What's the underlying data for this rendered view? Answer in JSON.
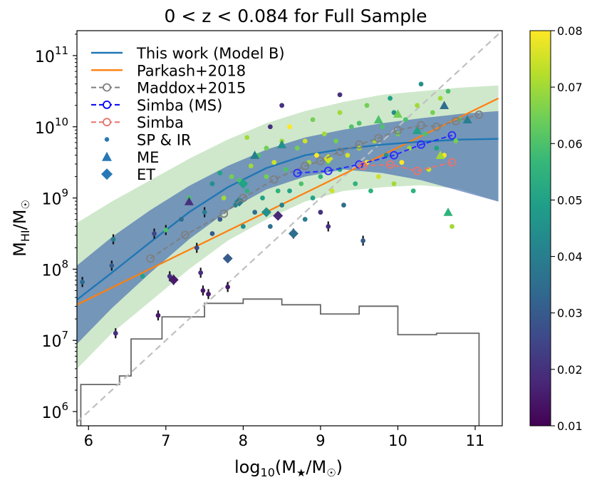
{
  "chart_data": {
    "type": "scatter",
    "title": "0 < z < 0.084 for Full Sample",
    "xlabel": {
      "base": "log",
      "sub": "10",
      "rest": "(M",
      "star": "★",
      "tail": "/M",
      "sun": "☉",
      "close": ")"
    },
    "ylabel": {
      "main": "M",
      "sub": "HI",
      "rest": "/M",
      "sun": "☉"
    },
    "xlim": [
      5.85,
      11.35
    ],
    "ylim_log10": [
      5.8,
      11.35
    ],
    "x_ticks": [
      "6",
      "7",
      "8",
      "9",
      "10",
      "11"
    ],
    "y_ticks": [
      {
        "base": "10",
        "exp": "6",
        "v": 6
      },
      {
        "base": "10",
        "exp": "7",
        "v": 7
      },
      {
        "base": "10",
        "exp": "8",
        "v": 8
      },
      {
        "base": "10",
        "exp": "9",
        "v": 9
      },
      {
        "base": "10",
        "exp": "10",
        "v": 10
      },
      {
        "base": "10",
        "exp": "11",
        "v": 11
      }
    ],
    "colorbar": {
      "min": 0.01,
      "max": 0.08,
      "ticks": [
        "0.01",
        "0.02",
        "0.03",
        "0.04",
        "0.05",
        "0.06",
        "0.07",
        "0.08"
      ],
      "colormap": [
        "#440154",
        "#482878",
        "#3e4989",
        "#31688e",
        "#26828e",
        "#1f9e89",
        "#35b779",
        "#6ece58",
        "#b5de2b",
        "#fde725"
      ]
    },
    "legend": {
      "position": "top-left",
      "entries": [
        {
          "label": "This work (Model B)",
          "kind": "line",
          "color": "#1f77b4"
        },
        {
          "label": "Parkash+2018",
          "kind": "line",
          "color": "#ff7f0e"
        },
        {
          "label": "Maddox+2015",
          "kind": "dashed-open",
          "color": "#7f7f7f"
        },
        {
          "label": "Simba (MS)",
          "kind": "dashed-open",
          "color": "#0000ff"
        },
        {
          "label": "Simba",
          "kind": "dashed-open",
          "color": "#e8736e"
        },
        {
          "label": "SP & IR",
          "kind": "dot",
          "color": "#2878b5"
        },
        {
          "label": "ME",
          "kind": "triangle",
          "color": "#2878b5"
        },
        {
          "label": "ET",
          "kind": "diamond",
          "color": "#2878b5"
        }
      ]
    },
    "model_b": {
      "x": [
        5.85,
        6.3,
        6.8,
        7.3,
        7.8,
        8.3,
        8.8,
        9.3,
        9.8,
        10.3,
        10.8,
        11.3
      ],
      "y": [
        7.57,
        7.95,
        8.38,
        8.8,
        9.15,
        9.42,
        9.6,
        9.69,
        9.75,
        9.79,
        9.82,
        9.83
      ],
      "dark_lo": [
        6.95,
        7.45,
        7.95,
        8.42,
        8.82,
        9.12,
        9.3,
        9.4,
        9.35,
        9.25,
        9.1,
        8.95
      ],
      "dark_hi": [
        8.05,
        8.45,
        8.83,
        9.17,
        9.45,
        9.68,
        9.85,
        9.96,
        10.05,
        10.12,
        10.18,
        10.22
      ],
      "green_lo": [
        6.6,
        7.1,
        7.55,
        8.0,
        8.4,
        8.7,
        8.95,
        9.1,
        9.15,
        9.18,
        9.13,
        8.95
      ],
      "green_hi": [
        8.65,
        8.95,
        9.25,
        9.55,
        9.82,
        10.05,
        10.22,
        10.35,
        10.45,
        10.5,
        10.55,
        10.58
      ]
    },
    "parkash": {
      "x": [
        5.85,
        11.3
      ],
      "y": [
        7.5,
        10.4
      ]
    },
    "one_to_one": {
      "x": [
        5.85,
        11.35
      ],
      "y": [
        5.85,
        11.35
      ]
    },
    "maddox": {
      "x": [
        6.8,
        7.25,
        7.75,
        8.0,
        8.4,
        8.8,
        9.0,
        9.25,
        9.5,
        9.75,
        10.0,
        10.3,
        10.5,
        10.75,
        11.05
      ],
      "y": [
        8.15,
        8.48,
        8.78,
        9.0,
        9.26,
        9.45,
        9.52,
        9.65,
        9.75,
        9.84,
        9.95,
        10.02,
        10.0,
        10.08,
        10.17
      ]
    },
    "simba_ms": {
      "x": [
        8.7,
        9.1,
        9.5,
        9.95,
        10.3,
        10.7
      ],
      "y": [
        9.35,
        9.38,
        9.47,
        9.6,
        9.75,
        9.88
      ]
    },
    "simba": {
      "x": [
        9.55,
        9.9,
        10.25,
        10.7
      ],
      "y": [
        9.45,
        9.47,
        9.38,
        9.5
      ]
    },
    "histogram": {
      "edges": [
        5.9,
        6.4,
        6.55,
        6.95,
        7.5,
        8.0,
        8.5,
        9.0,
        9.5,
        10.0,
        10.5,
        11.05
      ],
      "heights": [
        6.38,
        6.5,
        7.02,
        7.33,
        7.52,
        7.58,
        7.5,
        7.37,
        7.48,
        7.08,
        7.1
      ],
      "floor": 5.8
    },
    "sp_ir": [
      [
        5.92,
        7.82,
        0.034,
        1
      ],
      [
        6.3,
        8.05,
        0.03,
        1
      ],
      [
        6.32,
        8.42,
        0.04,
        1
      ],
      [
        6.35,
        7.1,
        0.02,
        1
      ],
      [
        6.7,
        7.9,
        0.05,
        0
      ],
      [
        6.85,
        8.5,
        0.025,
        1
      ],
      [
        6.9,
        7.35,
        0.015,
        1
      ],
      [
        7.0,
        8.55,
        0.06,
        1
      ],
      [
        7.05,
        7.9,
        0.02,
        1
      ],
      [
        7.1,
        7.85,
        0.015,
        1
      ],
      [
        7.2,
        8.7,
        0.035,
        0
      ],
      [
        7.3,
        9.0,
        0.06,
        0
      ],
      [
        7.4,
        8.3,
        0.025,
        1
      ],
      [
        7.45,
        7.95,
        0.02,
        1
      ],
      [
        7.48,
        7.7,
        0.015,
        1
      ],
      [
        7.5,
        8.8,
        0.04,
        1
      ],
      [
        7.55,
        7.65,
        0.015,
        1
      ],
      [
        7.6,
        8.5,
        0.03,
        0
      ],
      [
        7.6,
        9.2,
        0.045,
        0
      ],
      [
        7.7,
        9.35,
        0.05,
        0
      ],
      [
        7.7,
        8.7,
        0.03,
        0
      ],
      [
        7.75,
        9.0,
        0.07,
        0
      ],
      [
        7.8,
        7.75,
        0.015,
        1
      ],
      [
        7.85,
        9.3,
        0.065,
        0
      ],
      [
        7.9,
        8.9,
        0.04,
        0
      ],
      [
        7.95,
        9.25,
        0.06,
        0
      ],
      [
        8.0,
        8.6,
        0.045,
        0
      ],
      [
        8.05,
        9.1,
        0.055,
        0
      ],
      [
        8.1,
        9.45,
        0.07,
        0
      ],
      [
        8.15,
        8.8,
        0.035,
        0
      ],
      [
        8.2,
        9.6,
        0.06,
        0
      ],
      [
        8.25,
        9.0,
        0.05,
        0
      ],
      [
        8.3,
        9.3,
        0.065,
        0
      ],
      [
        8.35,
        10.0,
        0.02,
        0
      ],
      [
        8.35,
        8.6,
        0.035,
        0
      ],
      [
        8.4,
        9.5,
        0.075,
        0
      ],
      [
        8.45,
        9.1,
        0.055,
        0
      ],
      [
        8.5,
        9.8,
        0.07,
        0
      ],
      [
        8.5,
        8.9,
        0.04,
        0
      ],
      [
        8.55,
        9.4,
        0.06,
        0
      ],
      [
        8.6,
        10.0,
        0.08,
        0
      ],
      [
        8.6,
        9.1,
        0.05,
        0
      ],
      [
        8.65,
        8.5,
        0.03,
        1
      ],
      [
        8.7,
        9.7,
        0.065,
        0
      ],
      [
        8.75,
        9.2,
        0.06,
        0
      ],
      [
        8.8,
        9.8,
        0.075,
        0
      ],
      [
        8.8,
        8.7,
        0.04,
        0
      ],
      [
        8.85,
        9.5,
        0.07,
        0
      ],
      [
        8.9,
        9.0,
        0.05,
        0
      ],
      [
        8.9,
        10.1,
        0.065,
        0
      ],
      [
        8.95,
        9.6,
        0.08,
        0
      ],
      [
        9.0,
        9.3,
        0.055,
        0
      ],
      [
        9.0,
        8.8,
        0.02,
        0
      ],
      [
        9.05,
        9.9,
        0.07,
        0
      ],
      [
        9.1,
        8.6,
        0.02,
        1
      ],
      [
        9.1,
        9.5,
        0.06,
        0
      ],
      [
        9.15,
        9.1,
        0.075,
        0
      ],
      [
        9.2,
        9.8,
        0.065,
        0
      ],
      [
        9.25,
        9.4,
        0.05,
        0
      ],
      [
        9.25,
        10.2,
        0.07,
        0
      ],
      [
        9.3,
        8.9,
        0.035,
        0
      ],
      [
        9.35,
        9.6,
        0.075,
        0
      ],
      [
        9.4,
        10.0,
        0.06,
        0
      ],
      [
        9.45,
        9.2,
        0.055,
        0
      ],
      [
        9.5,
        9.7,
        0.07,
        0
      ],
      [
        9.55,
        8.4,
        0.03,
        1
      ],
      [
        9.6,
        9.5,
        0.08,
        0
      ],
      [
        9.6,
        10.3,
        0.065,
        0
      ],
      [
        9.65,
        9.1,
        0.055,
        0
      ],
      [
        9.7,
        9.8,
        0.07,
        0
      ],
      [
        9.75,
        9.3,
        0.075,
        0
      ],
      [
        9.8,
        10.0,
        0.06,
        0
      ],
      [
        9.85,
        9.6,
        0.045,
        0
      ],
      [
        9.9,
        10.4,
        0.05,
        0
      ],
      [
        9.95,
        9.2,
        0.07,
        0
      ],
      [
        10.0,
        9.9,
        0.065,
        0
      ],
      [
        10.05,
        9.5,
        0.08,
        0
      ],
      [
        10.1,
        10.1,
        0.06,
        0
      ],
      [
        10.15,
        9.7,
        0.07,
        0
      ],
      [
        10.2,
        9.1,
        0.055,
        0
      ],
      [
        10.25,
        10.3,
        0.07,
        0
      ],
      [
        10.3,
        10.6,
        0.045,
        0
      ],
      [
        10.35,
        9.9,
        0.06,
        0
      ],
      [
        10.4,
        9.4,
        0.075,
        0
      ],
      [
        10.45,
        10.2,
        0.065,
        0
      ],
      [
        10.5,
        9.7,
        0.05,
        0
      ],
      [
        10.55,
        10.4,
        0.07,
        0
      ],
      [
        10.6,
        9.6,
        0.08,
        0
      ],
      [
        10.65,
        10.5,
        0.06,
        0
      ],
      [
        10.7,
        8.6,
        0.07,
        0
      ],
      [
        10.75,
        9.8,
        0.065,
        0
      ],
      [
        10.8,
        10.1,
        0.06,
        0
      ],
      [
        8.05,
        9.85,
        0.07,
        0
      ],
      [
        8.3,
        9.7,
        0.065,
        0
      ],
      [
        8.5,
        10.3,
        0.02,
        0
      ],
      [
        9.25,
        10.45,
        0.02,
        0
      ],
      [
        9.5,
        10.05,
        0.06,
        0
      ],
      [
        9.95,
        10.2,
        0.045,
        0
      ]
    ],
    "me": [
      [
        7.3,
        8.95,
        0.02
      ],
      [
        8.15,
        9.6,
        0.04
      ],
      [
        8.5,
        9.75,
        0.045
      ],
      [
        9.75,
        10.1,
        0.06
      ],
      [
        10.0,
        10.18,
        0.065
      ],
      [
        10.25,
        9.95,
        0.05
      ],
      [
        10.55,
        9.6,
        0.07
      ],
      [
        10.6,
        10.3,
        0.035
      ],
      [
        10.65,
        8.8,
        0.055
      ],
      [
        10.9,
        10.1,
        0.04
      ]
    ],
    "et": [
      [
        7.1,
        7.85,
        0.015
      ],
      [
        7.8,
        8.15,
        0.03
      ],
      [
        7.95,
        8.95,
        0.04
      ],
      [
        8.3,
        8.8,
        0.045
      ],
      [
        8.45,
        8.75,
        0.018
      ],
      [
        8.65,
        8.5,
        0.035
      ],
      [
        9.1,
        9.55,
        0.075
      ],
      [
        8.0,
        9.2,
        0.05
      ]
    ]
  }
}
